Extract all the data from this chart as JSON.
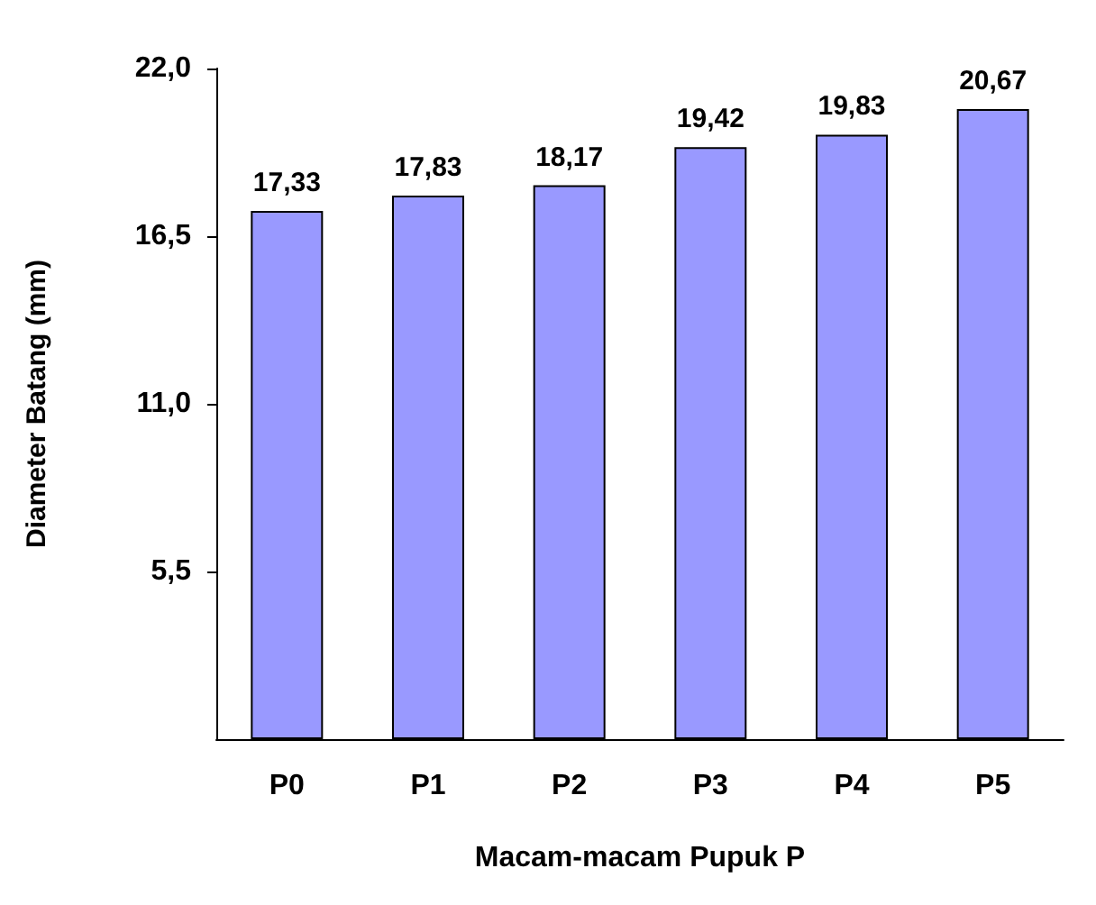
{
  "chart_data": {
    "type": "bar",
    "xlabel": "Macam-macam Pupuk P",
    "ylabel": "Diameter Batang (mm)",
    "categories": [
      "P0",
      "P1",
      "P2",
      "P3",
      "P4",
      "P5"
    ],
    "values": [
      17.33,
      17.83,
      18.17,
      19.42,
      19.83,
      20.67
    ],
    "value_labels": [
      "17,33",
      "17,83",
      "18,17",
      "19,42",
      "19,83",
      "20,67"
    ],
    "color": "#9999ff",
    "ylim": [
      0,
      22
    ],
    "yticks": [
      {
        "value": 5.5,
        "label": "5,5"
      },
      {
        "value": 11,
        "label": "11,0"
      },
      {
        "value": 16.5,
        "label": "16,5"
      },
      {
        "value": 22,
        "label": "22,0"
      }
    ],
    "grid": false
  }
}
